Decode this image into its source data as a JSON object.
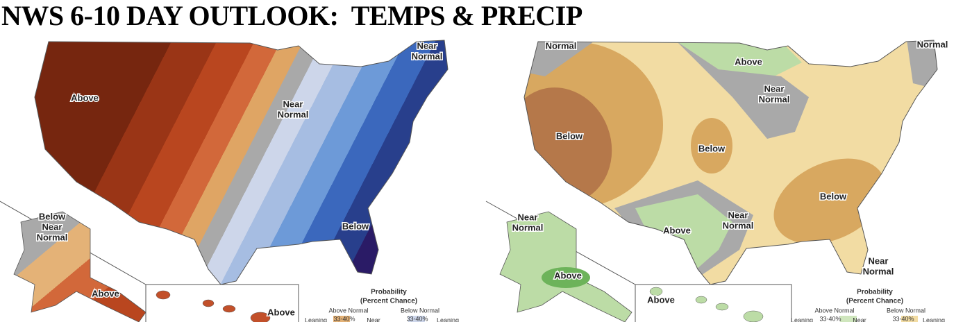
{
  "title": "NWS 6-10 DAY OUTLOOK:  TEMPS & PRECIP",
  "maps": [
    {
      "labels": [
        {
          "lines": [
            "Near",
            "Normal"
          ]
        },
        {
          "lines": [
            "Above"
          ]
        },
        {
          "lines": [
            "Near",
            "Normal"
          ]
        },
        {
          "lines": [
            "Below"
          ]
        },
        {
          "lines": [
            "Below",
            "Near",
            "Normal"
          ]
        },
        {
          "lines": [
            "Above"
          ]
        },
        {
          "lines": [
            "Above"
          ]
        }
      ],
      "legend": {
        "title": "Probability",
        "subtitle": "(Percent Chance)",
        "above": "Above Normal",
        "below": "Below Normal",
        "above_range": "33-40%",
        "below_range": "33-40%",
        "leaning_left": "Leaning",
        "leaning_right": "Leaning",
        "near": "Near"
      }
    },
    {
      "labels": [
        {
          "lines": [
            "Normal"
          ]
        },
        {
          "lines": [
            "Above"
          ]
        },
        {
          "lines": [
            "Near",
            "Normal"
          ]
        },
        {
          "lines": [
            "Normal"
          ]
        },
        {
          "lines": [
            "Below"
          ]
        },
        {
          "lines": [
            "Below"
          ]
        },
        {
          "lines": [
            "Below"
          ]
        },
        {
          "lines": [
            "Near",
            "Normal"
          ]
        },
        {
          "lines": [
            "Above"
          ]
        },
        {
          "lines": [
            "Near",
            "Normal"
          ]
        },
        {
          "lines": [
            "Near",
            "Normal"
          ]
        },
        {
          "lines": [
            "Above"
          ]
        },
        {
          "lines": [
            "Above"
          ]
        }
      ],
      "legend": {
        "title": "Probability",
        "subtitle": "(Percent Chance)",
        "above": "Above Normal",
        "below": "Below Normal",
        "above_range": "33-40%",
        "below_range": "33-40%",
        "leaning_left": "Leaning",
        "leaning_right": "Leaning",
        "near": "Near"
      }
    }
  ]
}
